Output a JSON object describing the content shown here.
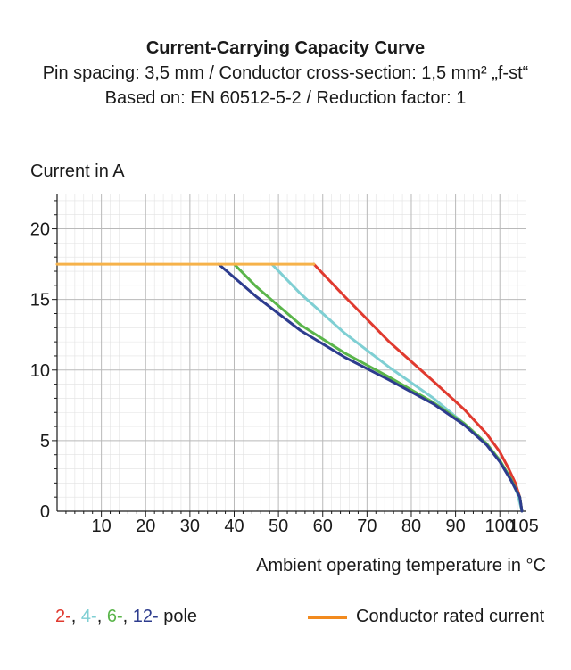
{
  "header": {
    "title": "Current-Carrying Capacity Curve",
    "line2": "Pin spacing: 3,5 mm / Conductor cross-section: 1,5 mm² „f-st“",
    "line3": "Based on: EN 60512-5-2 / Reduction factor: 1"
  },
  "chart_data": {
    "type": "line",
    "title": "Current-Carrying Capacity Curve",
    "xlabel": "Ambient operating temperature in °C",
    "ylabel": "Current in A",
    "xlim": [
      0,
      106
    ],
    "ylim": [
      0,
      22.5
    ],
    "xticks": [
      10,
      20,
      30,
      40,
      50,
      60,
      70,
      80,
      90,
      100,
      105
    ],
    "xtick_labels": [
      "10",
      "20",
      "30",
      "40",
      "50",
      "60",
      "70",
      "80",
      "90",
      "100",
      "105"
    ],
    "yticks": [
      0,
      5,
      10,
      15,
      20
    ],
    "ytick_labels": [
      "0",
      "5",
      "10",
      "15",
      "20"
    ],
    "grid": true,
    "series": [
      {
        "name": "2-",
        "color": "#e03a2f",
        "x": [
          58,
          65,
          75,
          85,
          92,
          97,
          100,
          102,
          103.5,
          104.5,
          105
        ],
        "y": [
          17.5,
          15.2,
          12.0,
          9.2,
          7.2,
          5.5,
          4.2,
          3.0,
          2.0,
          1.0,
          0
        ]
      },
      {
        "name": "4-",
        "color": "#7fcfd3",
        "x": [
          48.5,
          55,
          65,
          75,
          85,
          92,
          97,
          100,
          102.5,
          104,
          105
        ],
        "y": [
          17.5,
          15.4,
          12.6,
          10.2,
          8.0,
          6.2,
          4.8,
          3.6,
          2.3,
          1.2,
          0
        ]
      },
      {
        "name": "6-",
        "color": "#5ab54a",
        "x": [
          40,
          45,
          55,
          65,
          75,
          85,
          92,
          97,
          100,
          102.5,
          104.5,
          105
        ],
        "y": [
          17.5,
          15.9,
          13.2,
          11.2,
          9.5,
          7.7,
          6.2,
          4.8,
          3.6,
          2.3,
          1.0,
          0
        ]
      },
      {
        "name": "12-",
        "color": "#2d3c8e",
        "x": [
          36.5,
          45,
          55,
          65,
          75,
          85,
          92,
          97,
          100,
          102.5,
          104.5,
          105
        ],
        "y": [
          17.5,
          15.2,
          12.8,
          10.9,
          9.3,
          7.6,
          6.1,
          4.7,
          3.5,
          2.2,
          1.0,
          0
        ]
      },
      {
        "name": "Conductor rated current",
        "color": "#f6b24a",
        "x": [
          0,
          58
        ],
        "y": [
          17.5,
          17.5
        ]
      }
    ]
  },
  "legend": {
    "items": [
      {
        "label": "2-",
        "color": "#e03a2f"
      },
      {
        "label": ", ",
        "color": "#1a1a1a"
      },
      {
        "label": "4-",
        "color": "#7fcfd3"
      },
      {
        "label": ", ",
        "color": "#1a1a1a"
      },
      {
        "label": "6-",
        "color": "#5ab54a"
      },
      {
        "label": ", ",
        "color": "#1a1a1a"
      },
      {
        "label": "12-",
        "color": "#2d3c8e"
      }
    ],
    "pole_suffix": " pole",
    "rated_label": "Conductor rated current",
    "rated_color": "#f28a1e"
  }
}
